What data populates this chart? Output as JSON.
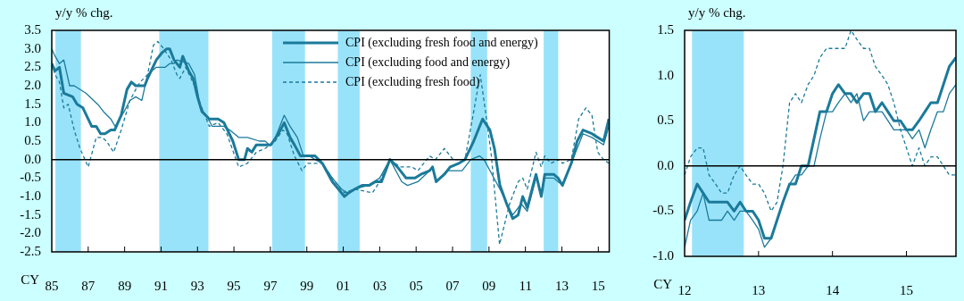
{
  "chart_data": [
    {
      "type": "line",
      "ylabel": "y/y % chg.",
      "xlabel": "CY",
      "legend": "top right",
      "xlim": [
        1985,
        2015.6
      ],
      "ylim": [
        -2.5,
        3.5
      ],
      "xticks": [
        {
          "value": 1985,
          "label": "85"
        },
        {
          "value": 1987,
          "label": "87"
        },
        {
          "value": 1989,
          "label": "89"
        },
        {
          "value": 1991,
          "label": "91"
        },
        {
          "value": 1993,
          "label": "93"
        },
        {
          "value": 1995,
          "label": "95"
        },
        {
          "value": 1997,
          "label": "97"
        },
        {
          "value": 1999,
          "label": "99"
        },
        {
          "value": 2001,
          "label": "01"
        },
        {
          "value": 2003,
          "label": "03"
        },
        {
          "value": 2005,
          "label": "05"
        },
        {
          "value": 2007,
          "label": "07"
        },
        {
          "value": 2009,
          "label": "09"
        },
        {
          "value": 2011,
          "label": "11"
        },
        {
          "value": 2013,
          "label": "13"
        },
        {
          "value": 2015,
          "label": "15"
        }
      ],
      "yticks": [
        {
          "value": -2.5,
          "label": "-2.5"
        },
        {
          "value": -2,
          "label": "-2.0"
        },
        {
          "value": -1.5,
          "label": "-1.5"
        },
        {
          "value": -1,
          "label": "-1.0"
        },
        {
          "value": -0.5,
          "label": "-0.5"
        },
        {
          "value": 0,
          "label": "0.0"
        },
        {
          "value": 0.5,
          "label": "0.5"
        },
        {
          "value": 1,
          "label": "1.0"
        },
        {
          "value": 1.5,
          "label": "1.5"
        },
        {
          "value": 2,
          "label": "2.0"
        },
        {
          "value": 2.5,
          "label": "2.5"
        },
        {
          "value": 3,
          "label": "3.0"
        },
        {
          "value": 3.5,
          "label": "3.5"
        }
      ],
      "bands": [
        {
          "axis": "x",
          "from": 1985.2,
          "to": 1986.6,
          "color": "#99e3fa"
        },
        {
          "axis": "x",
          "from": 1990.9,
          "to": 1993.6,
          "color": "#99e3fa"
        },
        {
          "axis": "x",
          "from": 1997.1,
          "to": 1998.9,
          "color": "#99e3fa"
        },
        {
          "axis": "x",
          "from": 2000.7,
          "to": 2001.9,
          "color": "#99e3fa"
        },
        {
          "axis": "x",
          "from": 2008.0,
          "to": 2008.9,
          "color": "#99e3fa"
        },
        {
          "axis": "x",
          "from": 2012.0,
          "to": 2012.8,
          "color": "#99e3fa"
        }
      ],
      "ref_lines": [
        {
          "axis": "y",
          "value": 0,
          "color": "#000000"
        }
      ],
      "series": [
        {
          "name": "CPI (excluding fresh food and energy)",
          "color": "#1b7a9a",
          "line_style": "solid",
          "x": [
            1985.0,
            1985.18,
            1985.42,
            1985.66,
            1986.15,
            1986.39,
            1986.71,
            1987.19,
            1987.44,
            1987.68,
            1987.92,
            1988.24,
            1988.45,
            1988.81,
            1989.13,
            1989.37,
            1989.61,
            1990.1,
            1990.26,
            1990.74,
            1991.06,
            1991.31,
            1991.47,
            1991.71,
            1992.03,
            1992.19,
            1992.52,
            1992.76,
            1993.0,
            1993.24,
            1993.65,
            1994.13,
            1994.45,
            1994.94,
            1995.26,
            1995.58,
            1995.74,
            1995.98,
            1996.23,
            1996.71,
            1997.03,
            1997.44,
            1997.76,
            1998.08,
            1998.32,
            1998.65,
            1998.89,
            1999.13,
            1999.45,
            1999.85,
            2000.4,
            2000.74,
            2001.06,
            2001.3,
            2001.63,
            2002.03,
            2002.44,
            2002.76,
            2003.1,
            2003.56,
            2003.97,
            2004.45,
            2004.94,
            2005.26,
            2005.74,
            2005.9,
            2006.1,
            2006.55,
            2006.87,
            2007.35,
            2007.68,
            2008.16,
            2008.65,
            2009.05,
            2009.3,
            2009.6,
            2009.97,
            2010.3,
            2010.6,
            2010.85,
            2011.1,
            2011.58,
            2011.87,
            2012.06,
            2012.55,
            2012.79,
            2013.03,
            2013.52,
            2013.84,
            2014.16,
            2014.65,
            2014.97,
            2015.29,
            2015.58
          ],
          "values": [
            2.6,
            2.4,
            2.5,
            1.8,
            1.7,
            1.5,
            1.4,
            0.9,
            0.9,
            0.7,
            0.7,
            0.8,
            0.8,
            1.2,
            1.9,
            2.1,
            2.0,
            2.0,
            2.2,
            2.7,
            2.9,
            3.0,
            3.0,
            2.7,
            2.5,
            2.8,
            2.4,
            2.2,
            1.7,
            1.3,
            1.1,
            1.1,
            1.0,
            0.5,
            0.0,
            0.0,
            0.3,
            0.2,
            0.4,
            0.4,
            0.4,
            0.7,
            1.0,
            0.6,
            0.4,
            0.1,
            0.1,
            0.1,
            0.1,
            -0.1,
            -0.6,
            -0.8,
            -1.0,
            -0.9,
            -0.8,
            -0.7,
            -0.7,
            -0.6,
            -0.6,
            0.0,
            -0.2,
            -0.5,
            -0.5,
            -0.4,
            -0.3,
            -0.2,
            -0.6,
            -0.4,
            -0.2,
            -0.1,
            0.0,
            0.5,
            1.1,
            0.8,
            0.3,
            -0.7,
            -1.2,
            -1.6,
            -1.5,
            -1.0,
            -1.3,
            -0.4,
            -1.0,
            -0.4,
            -0.4,
            -0.5,
            -0.7,
            -0.1,
            0.5,
            0.8,
            0.7,
            0.6,
            0.5,
            1.1
          ]
        },
        {
          "name": "CPI (excluding food and energy)",
          "color": "#1b7a9a",
          "line_style": "solid",
          "x": [
            1985.0,
            1985.18,
            1985.42,
            1985.66,
            1985.98,
            1986.23,
            1986.87,
            1987.52,
            1987.84,
            1988.24,
            1988.48,
            1988.97,
            1989.29,
            1989.61,
            1989.94,
            1990.26,
            1990.74,
            1991.23,
            1991.47,
            1991.71,
            1991.87,
            1992.52,
            1992.84,
            1993.16,
            1993.48,
            1993.81,
            1994.13,
            1994.45,
            1994.77,
            1995.26,
            1995.74,
            1996.39,
            1996.71,
            1996.95,
            1997.19,
            1997.44,
            1997.76,
            1998.08,
            1998.48,
            1998.81,
            1999.13,
            1999.45,
            1999.85,
            2000.4,
            2000.9,
            2001.23,
            2001.63,
            2002.35,
            2003.0,
            2003.56,
            2004.21,
            2004.53,
            2005.1,
            2005.74,
            2005.9,
            2006.1,
            2006.71,
            2007.52,
            2008.0,
            2008.48,
            2008.73,
            2009.05,
            2009.6,
            2010.3,
            2010.77,
            2011.1,
            2011.58,
            2011.87,
            2012.06,
            2012.55,
            2013.03,
            2013.52,
            2014.16,
            2014.65,
            2014.97,
            2015.29,
            2015.58
          ],
          "values": [
            3.0,
            2.8,
            2.6,
            2.7,
            2.0,
            2.0,
            1.8,
            1.5,
            1.3,
            1.1,
            0.9,
            1.3,
            1.6,
            1.7,
            1.6,
            2.3,
            2.5,
            2.5,
            2.6,
            2.6,
            2.7,
            2.6,
            2.3,
            1.4,
            1.2,
            0.9,
            0.9,
            0.9,
            0.8,
            0.6,
            0.6,
            0.5,
            0.5,
            0.4,
            0.5,
            0.8,
            1.2,
            0.9,
            0.6,
            0.1,
            0.1,
            0.0,
            -0.1,
            -0.5,
            -0.8,
            -0.9,
            -0.8,
            -0.7,
            -0.5,
            0.0,
            -0.6,
            -0.7,
            -0.6,
            -0.3,
            -0.2,
            -0.6,
            -0.3,
            -0.3,
            0.0,
            0.1,
            0.0,
            -0.3,
            -0.8,
            -1.5,
            -1.2,
            -1.4,
            -0.5,
            -0.9,
            -0.5,
            -0.5,
            -0.7,
            -0.1,
            0.7,
            0.6,
            0.5,
            0.4,
            0.9
          ]
        },
        {
          "name": "CPI (excluding fresh food)",
          "color": "#1b7a9a",
          "line_style": "dashed",
          "x": [
            1985.0,
            1985.18,
            1985.42,
            1985.66,
            1985.9,
            1986.23,
            1986.55,
            1987.0,
            1987.44,
            1987.76,
            1988.0,
            1988.4,
            1988.81,
            1989.29,
            1989.61,
            1989.85,
            1990.26,
            1990.58,
            1990.82,
            1991.15,
            1991.55,
            1991.87,
            1992.03,
            1992.35,
            1992.84,
            1993.16,
            1993.65,
            1994.13,
            1994.61,
            1995.26,
            1995.74,
            1996.23,
            1996.71,
            1997.27,
            1997.68,
            1997.92,
            1998.32,
            1998.73,
            1999.05,
            1999.45,
            1999.85,
            2000.4,
            2001.06,
            2001.63,
            2002.6,
            2003.0,
            2003.56,
            2004.13,
            2004.77,
            2005.1,
            2005.74,
            2006.06,
            2006.55,
            2007.03,
            2007.68,
            2008.16,
            2008.52,
            2008.81,
            2009.13,
            2009.58,
            2010.13,
            2010.6,
            2010.85,
            2011.1,
            2011.58,
            2011.87,
            2012.06,
            2012.39,
            2012.87,
            2013.03,
            2013.52,
            2013.92,
            2014.32,
            2014.65,
            2014.97,
            2015.29,
            2015.58
          ],
          "values": [
            2.6,
            2.3,
            2.1,
            1.4,
            1.5,
            0.8,
            0.3,
            -0.2,
            0.6,
            0.6,
            0.5,
            0.2,
            0.8,
            1.6,
            1.9,
            2.1,
            2.3,
            3.1,
            3.2,
            3.0,
            2.7,
            2.3,
            2.2,
            2.5,
            2.0,
            1.5,
            0.9,
            1.0,
            0.7,
            -0.2,
            -0.1,
            0.2,
            0.3,
            0.5,
            0.8,
            0.7,
            0.1,
            -0.3,
            -0.1,
            -0.1,
            -0.1,
            -0.5,
            -0.9,
            -0.8,
            -0.9,
            -0.6,
            0.0,
            -0.2,
            -0.2,
            -0.3,
            0.1,
            0.0,
            0.3,
            0.0,
            0.0,
            1.3,
            2.3,
            1.3,
            0.1,
            -2.3,
            -1.2,
            -0.6,
            -0.5,
            -0.8,
            0.2,
            -0.2,
            0.1,
            -0.1,
            0.0,
            -0.1,
            0.0,
            1.1,
            1.4,
            1.2,
            0.2,
            0.0,
            -0.1
          ]
        }
      ]
    },
    {
      "type": "line",
      "ylabel": "y/y % chg.",
      "xlabel": "CY",
      "xlim": [
        2012,
        2015.67
      ],
      "ylim": [
        -1,
        1.5
      ],
      "xticks": [
        {
          "value": 2012,
          "label": "12"
        },
        {
          "value": 2013,
          "label": "13"
        },
        {
          "value": 2014,
          "label": "14"
        },
        {
          "value": 2015,
          "label": "15"
        }
      ],
      "yticks": [
        {
          "value": -1,
          "label": "-1.0"
        },
        {
          "value": -0.5,
          "label": "-0.5"
        },
        {
          "value": 0,
          "label": "0.0"
        },
        {
          "value": 0.5,
          "label": "0.5"
        },
        {
          "value": 1,
          "label": "1.0"
        },
        {
          "value": 1.5,
          "label": "1.5"
        }
      ],
      "bands": [
        {
          "axis": "x",
          "from": 2012.1,
          "to": 2012.8,
          "color": "#99e3fa"
        }
      ],
      "ref_lines": [
        {
          "axis": "y",
          "value": 0,
          "color": "#000000"
        }
      ],
      "x": [
        2012.0,
        2012.08,
        2012.17,
        2012.25,
        2012.33,
        2012.42,
        2012.5,
        2012.58,
        2012.67,
        2012.75,
        2012.83,
        2012.92,
        2013.0,
        2013.08,
        2013.17,
        2013.25,
        2013.33,
        2013.42,
        2013.5,
        2013.58,
        2013.67,
        2013.75,
        2013.83,
        2013.92,
        2014.0,
        2014.08,
        2014.17,
        2014.25,
        2014.33,
        2014.42,
        2014.5,
        2014.58,
        2014.67,
        2014.75,
        2014.83,
        2014.92,
        2015.0,
        2015.08,
        2015.17,
        2015.25,
        2015.33,
        2015.42,
        2015.5,
        2015.58,
        2015.67
      ],
      "series": [
        {
          "color": "#1b7a9a",
          "line_style": "solid",
          "values": [
            -0.6,
            -0.4,
            -0.2,
            -0.3,
            -0.4,
            -0.4,
            -0.4,
            -0.4,
            -0.5,
            -0.4,
            -0.5,
            -0.5,
            -0.6,
            -0.8,
            -0.8,
            -0.6,
            -0.4,
            -0.2,
            -0.2,
            0.0,
            0.0,
            0.3,
            0.6,
            0.6,
            0.8,
            0.9,
            0.8,
            0.8,
            0.7,
            0.8,
            0.8,
            0.6,
            0.7,
            0.6,
            0.5,
            0.5,
            0.4,
            0.4,
            0.5,
            0.6,
            0.7,
            0.7,
            0.9,
            1.1,
            1.2
          ]
        },
        {
          "color": "#1b7a9a",
          "line_style": "solid",
          "values": [
            -0.9,
            -0.6,
            -0.5,
            -0.3,
            -0.6,
            -0.6,
            -0.6,
            -0.5,
            -0.6,
            -0.5,
            -0.5,
            -0.6,
            -0.7,
            -0.9,
            -0.8,
            -0.6,
            -0.4,
            -0.2,
            -0.1,
            -0.1,
            0.0,
            0.0,
            0.3,
            0.6,
            0.6,
            0.7,
            0.8,
            0.7,
            0.8,
            0.5,
            0.6,
            0.6,
            0.6,
            0.5,
            0.4,
            0.4,
            0.4,
            0.3,
            0.4,
            0.2,
            0.4,
            0.6,
            0.6,
            0.8,
            0.9
          ]
        },
        {
          "color": "#1b7a9a",
          "line_style": "dashed",
          "values": [
            -0.1,
            0.1,
            0.2,
            0.2,
            -0.1,
            -0.2,
            -0.3,
            -0.3,
            -0.1,
            0.0,
            -0.1,
            -0.2,
            -0.2,
            -0.3,
            -0.5,
            -0.4,
            0.0,
            0.7,
            0.8,
            0.7,
            0.9,
            1.0,
            1.2,
            1.3,
            1.3,
            1.3,
            1.3,
            1.5,
            1.4,
            1.3,
            1.3,
            1.1,
            1.0,
            0.9,
            0.7,
            0.4,
            0.2,
            0.0,
            0.2,
            0.0,
            0.1,
            0.1,
            0.0,
            -0.1,
            -0.1
          ]
        }
      ]
    }
  ]
}
